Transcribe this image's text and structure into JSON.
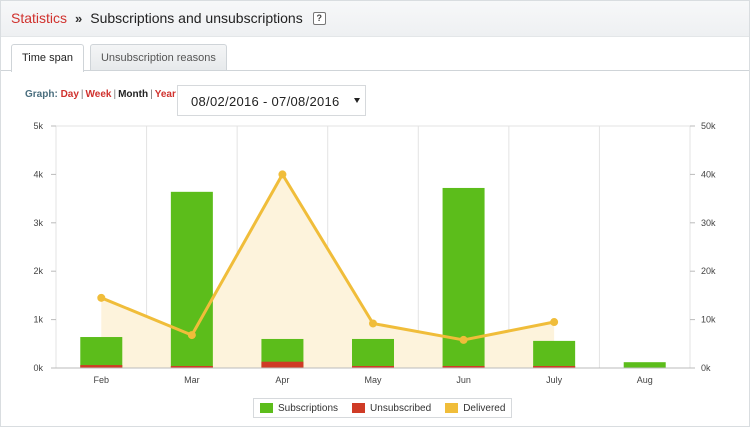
{
  "header": {
    "breadcrumb_link": "Statistics",
    "separator": "»",
    "title": "Subscriptions and unsubscriptions",
    "help_icon": "?"
  },
  "tabs": [
    {
      "label": "Time span",
      "active": true
    },
    {
      "label": "Unsubscription reasons",
      "active": false
    }
  ],
  "graph_nav": {
    "label": "Graph:",
    "options": [
      "Day",
      "Week",
      "Month",
      "Year"
    ],
    "separator": "|",
    "selected": "Month"
  },
  "date_range": {
    "value": "08/02/2016 - 07/08/2016",
    "icon": "chevron-down-icon"
  },
  "colors": {
    "subscriptions": "#5cbd1b",
    "unsubscribed": "#cf3b26",
    "delivered": "#f0bd3a",
    "delivered_fill": "#fdf3dc",
    "grid": "#e3e3e3",
    "brand_link": "#d0312d"
  },
  "chart_data": {
    "type": "bar",
    "categories": [
      "Feb",
      "Mar",
      "Apr",
      "May",
      "Jun",
      "July",
      "Aug"
    ],
    "series": [
      {
        "name": "Subscriptions",
        "type": "bar",
        "axis": "left",
        "values": [
          640,
          3640,
          600,
          600,
          3720,
          560,
          120
        ]
      },
      {
        "name": "Unsubscribed",
        "type": "bar",
        "axis": "left",
        "values": [
          60,
          30,
          130,
          40,
          20,
          40,
          0
        ]
      },
      {
        "name": "Delivered",
        "type": "area-line",
        "axis": "right",
        "values": [
          14500,
          6800,
          40000,
          9200,
          5800,
          9500,
          null
        ]
      }
    ],
    "y_left": {
      "ticks": [
        "0k",
        "1k",
        "2k",
        "3k",
        "4k",
        "5k"
      ],
      "range": [
        0,
        5000
      ]
    },
    "y_right": {
      "ticks": [
        "0k",
        "10k",
        "20k",
        "30k",
        "40k",
        "50k"
      ],
      "range": [
        0,
        50000
      ]
    },
    "grid": true,
    "legend_position": "bottom-center"
  },
  "legend": [
    {
      "label": "Subscriptions",
      "color": "#5cbd1b"
    },
    {
      "label": "Unsubscribed",
      "color": "#cf3b26"
    },
    {
      "label": "Delivered",
      "color": "#f0bd3a"
    }
  ]
}
